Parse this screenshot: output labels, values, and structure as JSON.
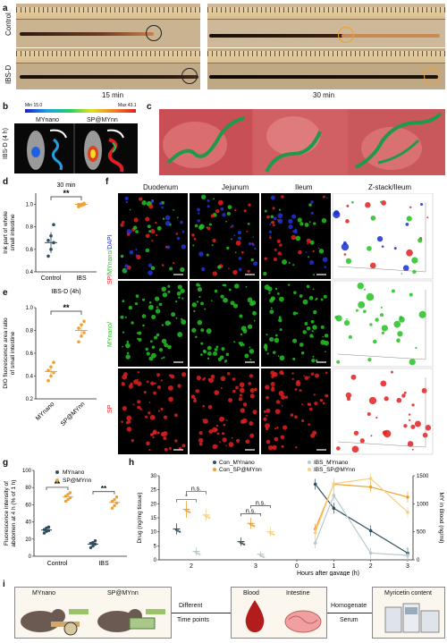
{
  "panels": {
    "a": "a",
    "b": "b",
    "c": "c",
    "d": "d",
    "e": "e",
    "f": "f",
    "g": "g",
    "h": "h",
    "i": "i"
  },
  "panel_a": {
    "row_labels": [
      "Control",
      "IBS-D"
    ],
    "time_labels": [
      "15 min",
      "30 min"
    ]
  },
  "panel_b": {
    "scale_min": "Min 15.0",
    "scale_max": "Max 43.1",
    "group_labels": [
      "MYnano",
      "SP@MYnn"
    ],
    "side_label": "IBS-D (4 h)"
  },
  "panel_f": {
    "col_labels": [
      "Duodenum",
      "Jejunum",
      "Ileum",
      "Z-stack/Ileum"
    ],
    "row_labels": [
      "SP/MYnano/DAPI",
      "MYnano",
      "SP"
    ],
    "row_label_parts": {
      "sp": "SP/",
      "my": "MYnano/",
      "dapi": "DAPI"
    },
    "colors": {
      "sp": "#e02020",
      "my": "#22c322",
      "dapi": "#2233dd"
    }
  },
  "panel_i": {
    "labels": [
      "MYnano",
      "SP@MYnn",
      "Different",
      "Time points",
      "Blood",
      "Intestine",
      "Homogenate",
      "Serum",
      "Myricetin content"
    ]
  },
  "chart_data": [
    {
      "id": "d",
      "type": "scatter",
      "title": "30 min",
      "ylabel": "Ink part of whole small intestine",
      "categories": [
        "Control",
        "IBS"
      ],
      "ylim": [
        0.4,
        1.1
      ],
      "yticks": [
        0.4,
        0.6,
        0.8,
        1.0
      ],
      "significance": "**",
      "series": [
        {
          "category": "Control",
          "color": "#2f4f5f",
          "values": [
            0.54,
            0.6,
            0.66,
            0.68,
            0.72,
            0.82
          ]
        },
        {
          "category": "IBS",
          "color": "#f0a030",
          "values": [
            0.98,
            0.99,
            1.0,
            1.0,
            1.0,
            1.01
          ]
        }
      ],
      "means": [
        0.66,
        1.0
      ]
    },
    {
      "id": "e",
      "type": "scatter",
      "title": "IBS-D (4h)",
      "ylabel": "DiO fluorescence area ratio of small intestine",
      "categories": [
        "MYnano",
        "SP@MYnn"
      ],
      "ylim": [
        0.2,
        1.0
      ],
      "yticks": [
        0.2,
        0.4,
        0.6,
        0.8,
        1.0
      ],
      "significance": "**",
      "series": [
        {
          "category": "MYnano",
          "color": "#f0a030",
          "values": [
            0.36,
            0.4,
            0.43,
            0.45,
            0.48,
            0.52
          ]
        },
        {
          "category": "SP@MYnn",
          "color": "#f0a030",
          "values": [
            0.7,
            0.75,
            0.78,
            0.82,
            0.85,
            0.88
          ]
        }
      ],
      "means": [
        0.44,
        0.8
      ]
    },
    {
      "id": "g",
      "type": "scatter",
      "ylabel": "Fluorescence intensity of abdomen at 4 h (% of 1 h)",
      "categories": [
        "Control",
        "IBS"
      ],
      "ylim": [
        0,
        100
      ],
      "yticks": [
        0,
        20,
        40,
        60,
        80,
        100
      ],
      "legend": [
        {
          "name": "MYnano",
          "color": "#2f4f5f"
        },
        {
          "name": "SP@MYnn",
          "color": "#f0a030"
        }
      ],
      "groups": [
        {
          "category": "Control",
          "MYnano": [
            27,
            29,
            30,
            31,
            33,
            34
          ],
          "SP@MYnn": [
            64,
            66,
            68,
            70,
            72,
            74
          ],
          "sig": "**"
        },
        {
          "category": "IBS",
          "MYnano": [
            10,
            12,
            14,
            15,
            16,
            18
          ],
          "SP@MYnn": [
            56,
            59,
            62,
            64,
            66,
            69
          ],
          "sig": "**"
        }
      ]
    },
    {
      "id": "h",
      "type": "bar+line",
      "ylabel": "Drug (ng/mg tissue)",
      "y2label": "MY in Blood (ng/ml)",
      "xlabel": "Hours after gavage (h)",
      "ylim": [
        0,
        30
      ],
      "yticks": [
        0,
        5,
        10,
        15,
        20,
        25,
        30
      ],
      "y2lim": [
        0,
        1500
      ],
      "y2ticks": [
        0,
        500,
        1000,
        1500
      ],
      "legend": [
        {
          "name": "Con_MYnano",
          "color": "#2f4f5f"
        },
        {
          "name": "Con_SP@MYnn",
          "color": "#f0a030"
        },
        {
          "name": "IBS_MYnano",
          "color": "#b8c8cc"
        },
        {
          "name": "IBS_SP@MYnn",
          "color": "#f6cf82"
        }
      ],
      "bar_groups": [
        {
          "category": "2",
          "values": [
            11,
            18,
            3,
            16
          ],
          "errors": [
            2,
            3,
            1.5,
            2
          ]
        },
        {
          "category": "3",
          "values": [
            6.5,
            13,
            2,
            10
          ],
          "errors": [
            1.5,
            2,
            1,
            1.5
          ]
        }
      ],
      "bar_annotations": {
        "2": [
          "*",
          "n.s."
        ],
        "3": [
          "n.s.",
          "n.s."
        ]
      },
      "line_x": [
        0.5,
        1,
        2,
        3
      ],
      "lines": [
        {
          "name": "Con_MYnano",
          "values": [
            1350,
            920,
            520,
            120
          ]
        },
        {
          "name": "Con_SP@MYnn",
          "values": [
            550,
            1350,
            1300,
            1120
          ]
        },
        {
          "name": "IBS_MYnano",
          "values": [
            300,
            1150,
            120,
            80
          ]
        },
        {
          "name": "IBS_SP@MYnn",
          "values": [
            480,
            1360,
            1450,
            850
          ]
        }
      ],
      "line_xticks": [
        0,
        1,
        2,
        3
      ]
    }
  ]
}
